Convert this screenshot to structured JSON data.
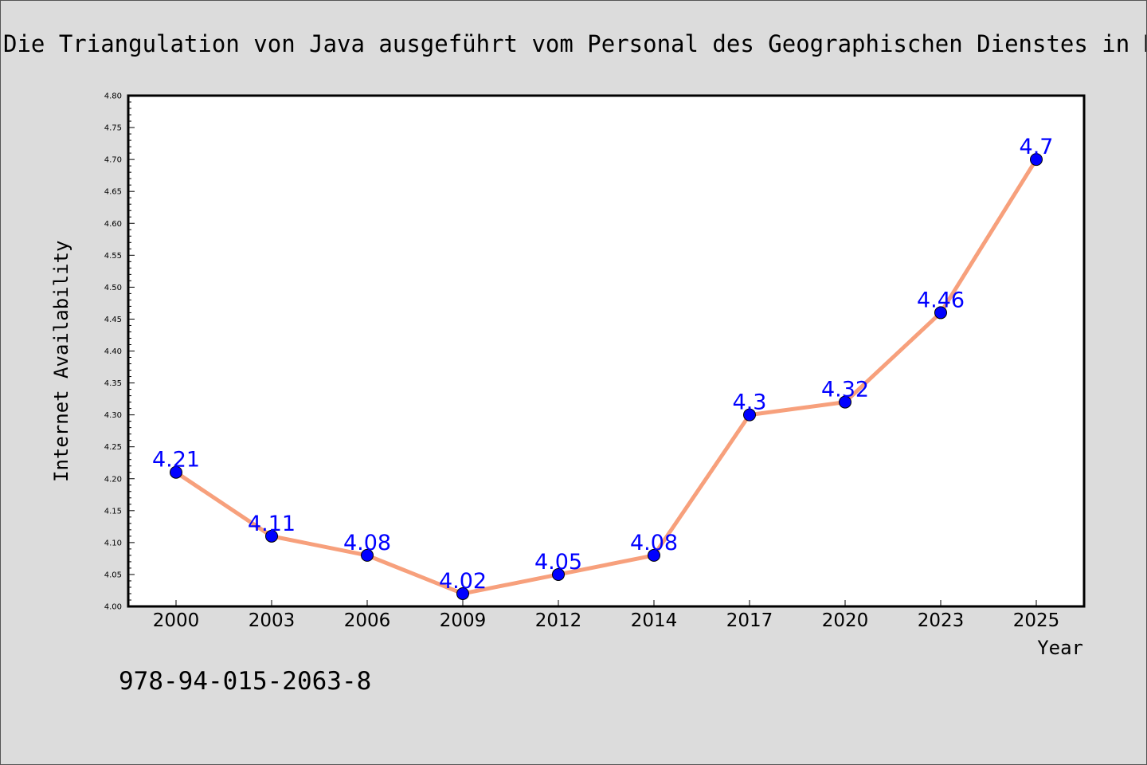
{
  "chart_data": {
    "type": "line",
    "title": "Die Triangulation von Java ausgeführt vom Personal des Geographischen Dienstes in Niederländisch-Ostindien",
    "xlabel": "Year",
    "ylabel": "Internet Availability",
    "categories": [
      "2000",
      "2003",
      "2006",
      "2009",
      "2012",
      "2014",
      "2017",
      "2020",
      "2023",
      "2025"
    ],
    "series": [
      {
        "values": [
          4.21,
          4.11,
          4.08,
          4.02,
          4.05,
          4.08,
          4.3,
          4.32,
          4.46,
          4.7
        ],
        "labels": [
          "4.21",
          "4.11",
          "4.08",
          "4.02",
          "4.05",
          "4.08",
          "4.3",
          "4.32",
          "4.46",
          "4.7"
        ]
      }
    ],
    "ylim": [
      4.0,
      4.8
    ],
    "yticks": [
      "4.00",
      "4.05",
      "4.10",
      "4.15",
      "4.20",
      "4.25",
      "4.30",
      "4.35",
      "4.40",
      "4.45",
      "4.50",
      "4.55",
      "4.60",
      "4.65",
      "4.70",
      "4.75",
      "4.80"
    ],
    "grid": false,
    "legend": "none",
    "line_color": "#f7a07c",
    "marker_color": "#0000ff",
    "label_color": "#0000ff"
  },
  "annotation": {
    "isbn": "978-94-015-2063-8"
  }
}
